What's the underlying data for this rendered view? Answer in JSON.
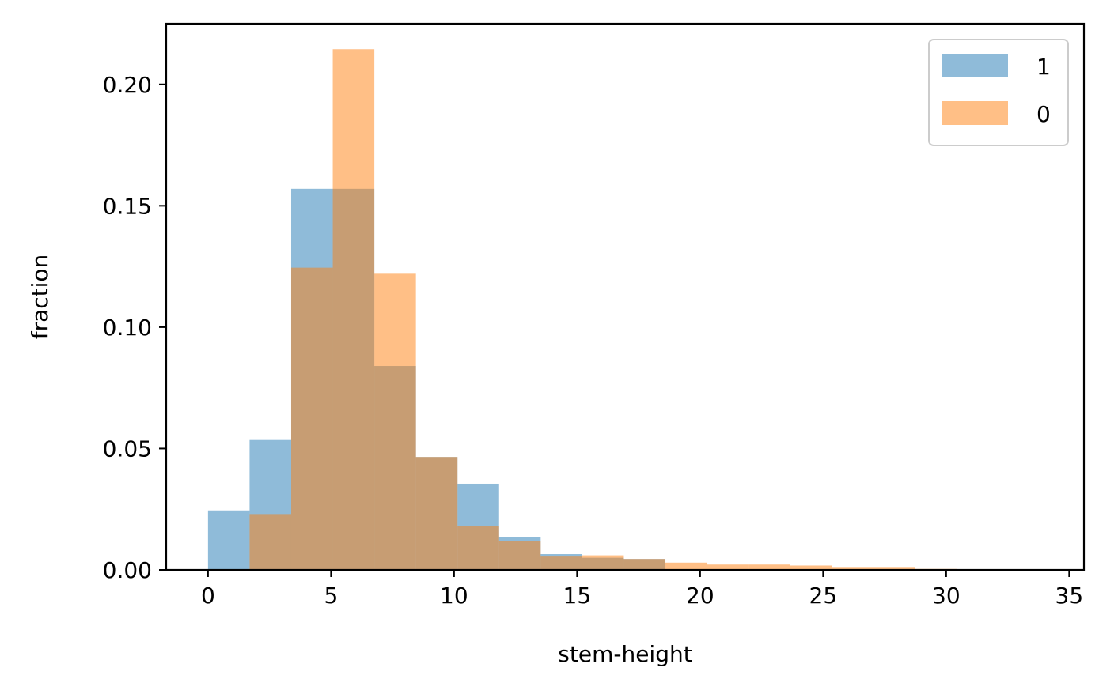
{
  "chart_data": {
    "type": "histogram",
    "title": "",
    "xlabel": "stem-height",
    "ylabel": "fraction",
    "xlim": [
      -1.7,
      35.6
    ],
    "ylim": [
      0,
      0.225
    ],
    "x_ticks": [
      0,
      5,
      10,
      15,
      20,
      25,
      30,
      35
    ],
    "x_tick_labels": [
      "0",
      "5",
      "10",
      "15",
      "20",
      "25",
      "30",
      "35"
    ],
    "y_ticks": [
      0.0,
      0.05,
      0.1,
      0.15,
      0.2
    ],
    "y_tick_labels": [
      "0.00",
      "0.05",
      "0.10",
      "0.15",
      "0.20"
    ],
    "grid": false,
    "legend": {
      "position": "top-right",
      "entries": [
        "1",
        "0"
      ]
    },
    "series": [
      {
        "name": "1",
        "color": "#1f77b4",
        "alpha": 0.5,
        "bins": [
          {
            "x0": 0.0,
            "x1": 1.69,
            "value": 0.0245
          },
          {
            "x0": 1.69,
            "x1": 3.38,
            "value": 0.0535
          },
          {
            "x0": 3.38,
            "x1": 5.07,
            "value": 0.157
          },
          {
            "x0": 5.07,
            "x1": 6.76,
            "value": 0.157
          },
          {
            "x0": 6.76,
            "x1": 8.45,
            "value": 0.084
          },
          {
            "x0": 8.45,
            "x1": 10.14,
            "value": 0.0465
          },
          {
            "x0": 10.14,
            "x1": 11.83,
            "value": 0.0355
          },
          {
            "x0": 11.83,
            "x1": 13.52,
            "value": 0.0135
          },
          {
            "x0": 13.52,
            "x1": 15.21,
            "value": 0.0065
          },
          {
            "x0": 15.21,
            "x1": 16.9,
            "value": 0.005
          },
          {
            "x0": 16.9,
            "x1": 18.59,
            "value": 0.0045
          },
          {
            "x0": 18.59,
            "x1": 20.28,
            "value": 0.0
          },
          {
            "x0": 20.28,
            "x1": 21.97,
            "value": 0.0
          },
          {
            "x0": 21.97,
            "x1": 23.66,
            "value": 0.0
          },
          {
            "x0": 23.66,
            "x1": 25.35,
            "value": 0.0
          },
          {
            "x0": 25.35,
            "x1": 27.04,
            "value": 0.0
          },
          {
            "x0": 27.04,
            "x1": 28.73,
            "value": 0.0
          },
          {
            "x0": 28.73,
            "x1": 30.42,
            "value": 0.0
          },
          {
            "x0": 30.42,
            "x1": 32.11,
            "value": 0.0
          },
          {
            "x0": 32.11,
            "x1": 33.8,
            "value": 0.0
          }
        ]
      },
      {
        "name": "0",
        "color": "#ff7f0e",
        "alpha": 0.5,
        "bins": [
          {
            "x0": 0.0,
            "x1": 1.69,
            "value": 0.0
          },
          {
            "x0": 1.69,
            "x1": 3.38,
            "value": 0.023
          },
          {
            "x0": 3.38,
            "x1": 5.07,
            "value": 0.1245
          },
          {
            "x0": 5.07,
            "x1": 6.76,
            "value": 0.2145
          },
          {
            "x0": 6.76,
            "x1": 8.45,
            "value": 0.122
          },
          {
            "x0": 8.45,
            "x1": 10.14,
            "value": 0.0465
          },
          {
            "x0": 10.14,
            "x1": 11.83,
            "value": 0.018
          },
          {
            "x0": 11.83,
            "x1": 13.52,
            "value": 0.012
          },
          {
            "x0": 13.52,
            "x1": 15.21,
            "value": 0.0055
          },
          {
            "x0": 15.21,
            "x1": 16.9,
            "value": 0.006
          },
          {
            "x0": 16.9,
            "x1": 18.59,
            "value": 0.0045
          },
          {
            "x0": 18.59,
            "x1": 20.28,
            "value": 0.003
          },
          {
            "x0": 20.28,
            "x1": 21.97,
            "value": 0.0022
          },
          {
            "x0": 21.97,
            "x1": 23.66,
            "value": 0.0022
          },
          {
            "x0": 23.66,
            "x1": 25.35,
            "value": 0.0018
          },
          {
            "x0": 25.35,
            "x1": 27.04,
            "value": 0.0012
          },
          {
            "x0": 27.04,
            "x1": 28.73,
            "value": 0.0012
          },
          {
            "x0": 28.73,
            "x1": 30.42,
            "value": 0.0004
          },
          {
            "x0": 30.42,
            "x1": 32.11,
            "value": 0.0001
          },
          {
            "x0": 32.11,
            "x1": 33.8,
            "value": 0.0
          }
        ]
      }
    ]
  }
}
